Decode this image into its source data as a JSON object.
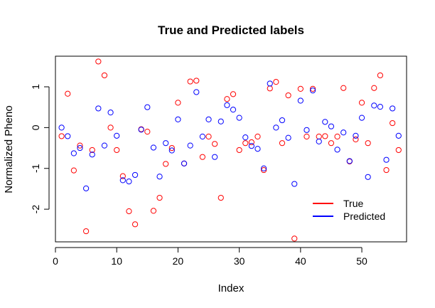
{
  "chart_data": {
    "type": "scatter",
    "title": "True and Predicted labels",
    "xlabel": "Index",
    "ylabel": "Normalized Pheno",
    "xlim": [
      0,
      57.3
    ],
    "ylim": [
      -2.8,
      1.75
    ],
    "xticks": [
      0,
      10,
      20,
      30,
      40,
      50
    ],
    "yticks": [
      -2,
      -1,
      0,
      1
    ],
    "grid": false,
    "legend_position": "bottom-right",
    "x": [
      1,
      2,
      3,
      4,
      5,
      6,
      7,
      8,
      9,
      10,
      11,
      12,
      13,
      14,
      15,
      16,
      17,
      18,
      19,
      20,
      21,
      22,
      23,
      24,
      25,
      26,
      27,
      28,
      29,
      30,
      31,
      32,
      33,
      34,
      35,
      36,
      37,
      38,
      39,
      40,
      41,
      42,
      43,
      44,
      45,
      46,
      47,
      48,
      49,
      50,
      51,
      52,
      53,
      54,
      55,
      56
    ],
    "series": [
      {
        "name": "True",
        "color": "#ff0000",
        "values": [
          -0.21,
          0.83,
          -1.05,
          -0.44,
          -2.54,
          -0.55,
          1.62,
          1.28,
          0.0,
          -0.55,
          -1.19,
          -2.05,
          -2.37,
          -0.04,
          -0.1,
          -2.04,
          -1.72,
          -0.89,
          -0.5,
          0.61,
          -0.88,
          1.13,
          1.15,
          -0.72,
          -0.22,
          -0.4,
          -1.72,
          0.7,
          0.82,
          -0.55,
          -0.38,
          -0.36,
          -0.22,
          -1.04,
          0.96,
          1.12,
          -0.38,
          0.79,
          -2.72,
          0.95,
          -0.22,
          0.95,
          -0.22,
          -0.21,
          -0.38,
          -0.22,
          0.97,
          -0.83,
          -0.29,
          0.61,
          -0.38,
          0.97,
          1.28,
          -1.04,
          0.11,
          -0.55
        ]
      },
      {
        "name": "Predicted",
        "color": "#0000ff",
        "values": [
          0.0,
          -0.21,
          -0.63,
          -0.5,
          -1.49,
          -0.66,
          0.47,
          -0.44,
          0.37,
          -0.2,
          -1.29,
          -1.32,
          -1.16,
          -0.05,
          0.5,
          -0.49,
          -1.2,
          -0.38,
          -0.56,
          0.2,
          -0.88,
          -0.44,
          0.87,
          -0.22,
          0.2,
          -0.72,
          0.15,
          0.55,
          0.44,
          0.24,
          -0.24,
          -0.45,
          -0.52,
          -1.0,
          1.08,
          0.0,
          0.18,
          -0.25,
          -1.38,
          0.66,
          -0.06,
          0.91,
          -0.34,
          0.14,
          0.03,
          -0.54,
          -0.12,
          -0.82,
          -0.2,
          0.24,
          -1.21,
          0.54,
          0.51,
          -0.79,
          0.47,
          -0.2
        ]
      }
    ]
  }
}
